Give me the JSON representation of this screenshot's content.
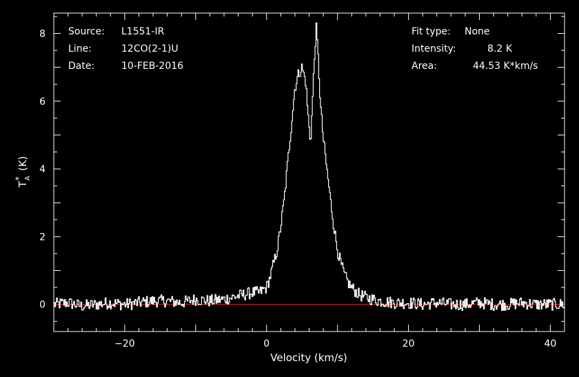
{
  "header": {
    "source_label": "Source:",
    "source_value": "L1551-IR",
    "line_label": "Line:",
    "line_value": "12CO(2-1)U",
    "date_label": "Date:",
    "date_value": "10-FEB-2016",
    "fit_label": "Fit type:",
    "fit_value": "None",
    "intensity_label": "Intensity:",
    "intensity_value": "8.2 K",
    "area_label": "Area:",
    "area_value": "44.53 K*km/s"
  },
  "chart_data": {
    "type": "line",
    "xlabel": "Velocity (km/s)",
    "ylabel_main": "T",
    "ylabel_sub": "A",
    "ylabel_sup": "*",
    "ylabel_unit": "(K)",
    "xlim": [
      -30,
      42
    ],
    "ylim": [
      -0.8,
      8.6
    ],
    "x_ticks": [
      -20,
      0,
      20,
      40
    ],
    "x_tick_labels": [
      "−20",
      "0",
      "20",
      "40"
    ],
    "y_ticks": [
      0,
      2,
      4,
      6,
      8
    ],
    "y_tick_labels": [
      "0",
      "2",
      "4",
      "6",
      "8"
    ],
    "baseline": 0,
    "colors": {
      "background": "#000000",
      "spectrum": "#ffffff",
      "baseline": "#e0201c",
      "axes": "#ffffff"
    },
    "series": [
      {
        "style": "histogram",
        "x": [
          -30,
          -28,
          -26,
          -24,
          -22,
          -20,
          -18,
          -16,
          -14,
          -12,
          -10,
          -8,
          -6,
          -4,
          -3,
          -2,
          -1,
          0,
          0.5,
          1,
          1.5,
          2,
          2.5,
          3,
          3.5,
          4,
          4.5,
          5,
          5.5,
          6,
          6.2,
          6.4,
          6.7,
          7,
          7.3,
          7.6,
          8,
          8.5,
          9,
          9.5,
          10,
          10.5,
          11,
          11.5,
          12,
          13,
          14,
          15,
          16,
          18,
          20,
          22,
          24,
          26,
          28,
          30,
          32,
          34,
          36,
          38,
          40,
          42
        ],
        "y": [
          0.0,
          0.05,
          -0.05,
          0.0,
          0.05,
          0.0,
          0.05,
          0.1,
          0.1,
          0.05,
          0.15,
          0.1,
          0.15,
          0.25,
          0.3,
          0.35,
          0.35,
          0.5,
          0.8,
          1.2,
          1.6,
          2.3,
          3.1,
          4.2,
          5.3,
          6.4,
          6.8,
          7.0,
          6.6,
          5.2,
          4.8,
          5.6,
          7.0,
          8.2,
          7.2,
          5.9,
          4.9,
          4.0,
          3.1,
          2.3,
          1.6,
          1.2,
          0.85,
          0.65,
          0.5,
          0.3,
          0.2,
          0.15,
          0.1,
          0.05,
          0.05,
          0.0,
          0.05,
          0.0,
          0.0,
          0.05,
          0.0,
          0.0,
          0.05,
          0.0,
          0.0,
          0.0
        ]
      }
    ]
  }
}
